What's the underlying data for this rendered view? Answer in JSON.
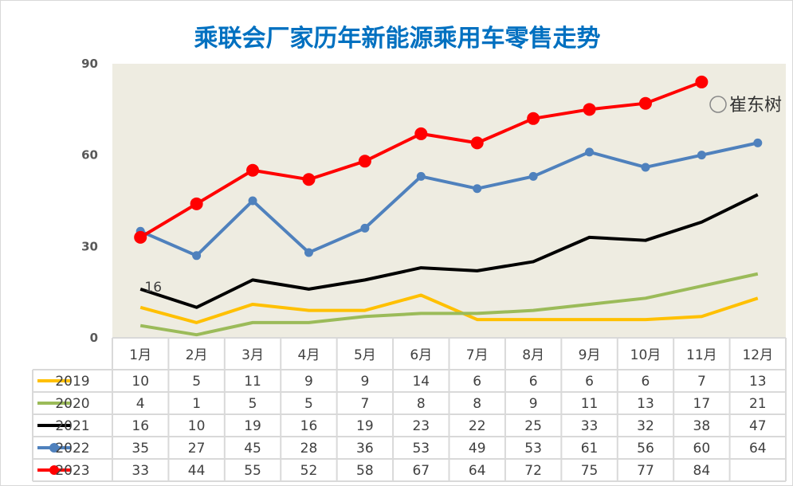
{
  "chart_data": {
    "type": "line",
    "title": "乘联会厂家历年新能源乘用车零售走势",
    "categories": [
      "1月",
      "2月",
      "3月",
      "4月",
      "5月",
      "6月",
      "7月",
      "8月",
      "9月",
      "10月",
      "11月",
      "12月"
    ],
    "ylim": [
      0,
      90
    ],
    "yticks": [
      0,
      30,
      60,
      90
    ],
    "grid": false,
    "legend": "data-table-below",
    "plot_background": "#eeece1",
    "series": [
      {
        "name": "2019",
        "color": "#ffc000",
        "markers": false,
        "values": [
          10,
          5,
          11,
          9,
          9,
          14,
          6,
          6,
          6,
          6,
          7,
          13
        ]
      },
      {
        "name": "2020",
        "color": "#9bbb59",
        "markers": false,
        "values": [
          4,
          1,
          5,
          5,
          7,
          8,
          8,
          9,
          11,
          13,
          17,
          21
        ]
      },
      {
        "name": "2021",
        "color": "#000000",
        "markers": false,
        "values": [
          16,
          10,
          19,
          16,
          19,
          23,
          22,
          25,
          33,
          32,
          38,
          47
        ]
      },
      {
        "name": "2022",
        "color": "#4f81bd",
        "markers": true,
        "values": [
          35,
          27,
          45,
          28,
          36,
          53,
          49,
          53,
          61,
          56,
          60,
          64
        ]
      },
      {
        "name": "2023",
        "color": "#ff0000",
        "markers": true,
        "values": [
          33,
          44,
          55,
          52,
          58,
          67,
          64,
          72,
          75,
          77,
          84,
          null
        ]
      }
    ],
    "annotations": [
      {
        "series": "2021",
        "category": "1月",
        "text": "16"
      }
    ]
  },
  "watermark": "崔东树"
}
